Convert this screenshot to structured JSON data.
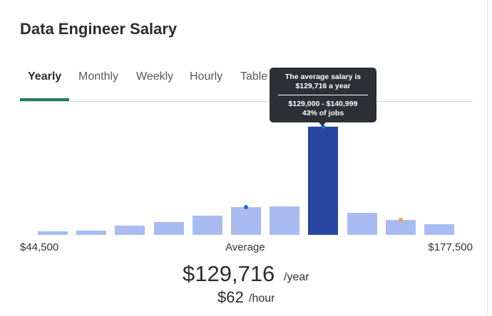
{
  "title": "Data Engineer Salary",
  "tabs": [
    "Yearly",
    "Monthly",
    "Weekly",
    "Hourly",
    "Table"
  ],
  "active_tab": 0,
  "tooltip": {
    "line1": "The average salary is",
    "line2": "$129,716 a year",
    "range": "$129,000 - $140,999",
    "share": "43% of jobs"
  },
  "histogram": {
    "values": [
      1.4,
      1.7,
      3.7,
      5.1,
      7.6,
      11,
      11.3,
      43,
      8.8,
      5.9,
      4.2
    ],
    "highlight": 7,
    "color": "#a9bbf1",
    "highlight_color": "#2946a0"
  },
  "axis": {
    "min_label": "$44,500",
    "mid_label": "Average",
    "max_label": "$177,500"
  },
  "summary": {
    "salary": "$129,716",
    "salary_unit": "/year",
    "hourly": "$62",
    "hourly_unit": "/hour"
  }
}
